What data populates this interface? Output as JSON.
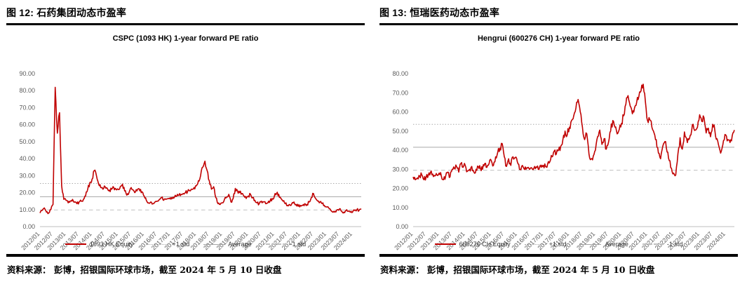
{
  "page": {
    "background": "#ffffff",
    "accent_red": "#C00000",
    "band_gray": "#A6A6A6"
  },
  "panels": [
    {
      "title": "图 12: 石药集团动态市盈率",
      "source": "资料来源： 彭博，招银国际环球市场，截至 2024 年 5 月 10 日收盘"
    },
    {
      "title": "图 13: 恒瑞医药动态市盈率",
      "source": "资料来源： 彭博，招银国际环球市场，截至 2024 年 5 月 10 日收盘"
    }
  ],
  "chart_data": [
    {
      "type": "line",
      "title": "CSPC (1093 HK) 1-year forward PE ratio",
      "xlabel": "",
      "ylabel": "",
      "ylim": [
        0,
        90
      ],
      "ytick_step": 10,
      "grid": false,
      "legend_position": "bottom",
      "x_unit": "month",
      "x_range": [
        "2012/01",
        "2024/05"
      ],
      "x_tick_labels": [
        "2012/01",
        "2012/07",
        "2013/01",
        "2013/07",
        "2014/01",
        "2014/07",
        "2015/01",
        "2015/07",
        "2016/01",
        "2016/07",
        "2017/01",
        "2017/07",
        "2018/01",
        "2018/07",
        "2019/01",
        "2019/07",
        "2020/01",
        "2020/07",
        "2021/01",
        "2021/07",
        "2022/01",
        "2022/07",
        "2023/01",
        "2023/07",
        "2024/01"
      ],
      "series": [
        {
          "name": "1093 HK Equity",
          "color": "#C00000",
          "values": [
            8.0,
            9.5,
            11.0,
            8.5,
            8.0,
            10.0,
            13.0,
            82.0,
            55.0,
            67.0,
            24.0,
            16.0,
            15.5,
            14.0,
            15.0,
            16.0,
            14.5,
            13.5,
            14.5,
            15.0,
            16.0,
            18.0,
            22.0,
            26.0,
            28.0,
            33.0,
            30.0,
            25.0,
            23.0,
            22.0,
            23.5,
            22.5,
            21.5,
            22.0,
            23.0,
            22.0,
            22.0,
            23.5,
            25.0,
            21.0,
            18.5,
            20.0,
            23.0,
            21.5,
            20.5,
            22.0,
            21.0,
            20.5,
            18.0,
            15.5,
            14.0,
            14.5,
            13.5,
            14.5,
            15.0,
            16.0,
            17.0,
            15.5,
            16.0,
            16.5,
            17.0,
            16.5,
            17.5,
            18.0,
            18.5,
            19.0,
            19.5,
            20.0,
            20.5,
            21.0,
            22.0,
            23.0,
            24.0,
            27.0,
            30.0,
            35.0,
            38.5,
            33.0,
            27.0,
            22.0,
            23.5,
            17.0,
            13.5,
            13.0,
            14.0,
            16.0,
            17.5,
            19.0,
            14.5,
            16.5,
            22.5,
            21.0,
            20.0,
            19.5,
            18.0,
            16.5,
            18.0,
            19.0,
            17.0,
            15.5,
            14.0,
            13.5,
            15.0,
            14.5,
            13.5,
            14.0,
            15.0,
            16.5,
            18.0,
            19.5,
            19.0,
            16.5,
            15.0,
            13.5,
            12.5,
            13.0,
            13.5,
            14.5,
            13.0,
            12.0,
            12.5,
            12.5,
            13.5,
            13.0,
            14.5,
            17.0,
            19.5,
            16.5,
            15.0,
            14.5,
            13.5,
            12.5,
            11.5,
            11.0,
            9.5,
            8.5,
            9.0,
            10.0,
            10.5,
            9.0,
            8.5,
            9.5,
            9.0,
            8.5,
            8.5,
            9.5,
            10.0,
            9.5,
            10.5
          ]
        }
      ],
      "reference_lines": [
        {
          "name": "+1 std",
          "value": 25.4,
          "style": "dotted",
          "color": "#A6A6A6"
        },
        {
          "name": "Average",
          "value": 17.6,
          "style": "solid",
          "color": "#A6A6A6"
        },
        {
          "name": "-1 std",
          "value": 9.8,
          "style": "dashed",
          "color": "#BFBFBF"
        }
      ],
      "legend_items": [
        {
          "label": "1093 HK Equity",
          "swatch": "solid-red"
        },
        {
          "label": "+1 std",
          "swatch": "dotted-gray"
        },
        {
          "label": "Average",
          "swatch": "solid-gray"
        },
        {
          "label": "-1 std",
          "swatch": "dashed-gray"
        }
      ]
    },
    {
      "type": "line",
      "title": "Hengrui (600276 CH) 1-year forward PE ratio",
      "xlabel": "",
      "ylabel": "",
      "ylim": [
        0,
        80
      ],
      "ytick_step": 10,
      "grid": false,
      "legend_position": "bottom",
      "x_unit": "month",
      "x_range": [
        "2012/01",
        "2024/05"
      ],
      "x_tick_labels": [
        "2012/01",
        "2012/07",
        "2013/01",
        "2013/07",
        "2014/01",
        "2014/07",
        "2015/01",
        "2015/07",
        "2016/01",
        "2016/07",
        "2017/01",
        "2017/07",
        "2018/01",
        "2018/07",
        "2019/01",
        "2019/07",
        "2020/01",
        "2020/07",
        "2021/01",
        "2021/07",
        "2022/01",
        "2022/07",
        "2023/01",
        "2023/07",
        "2024/01"
      ],
      "series": [
        {
          "name": "600276 CH Equity",
          "color": "#C00000",
          "values": [
            26.0,
            24.5,
            25.5,
            26.5,
            27.0,
            24.5,
            26.0,
            27.0,
            28.5,
            27.5,
            26.5,
            27.0,
            28.0,
            26.5,
            24.5,
            26.5,
            28.5,
            26.0,
            30.0,
            30.5,
            31.5,
            28.5,
            33.0,
            31.0,
            32.0,
            29.0,
            30.0,
            31.5,
            28.5,
            30.0,
            31.5,
            30.5,
            30.0,
            33.0,
            31.0,
            33.0,
            34.5,
            32.0,
            36.5,
            39.0,
            41.0,
            43.5,
            36.5,
            31.5,
            35.5,
            32.0,
            36.5,
            36.0,
            34.0,
            30.0,
            31.5,
            30.5,
            30.0,
            31.0,
            30.5,
            30.0,
            31.5,
            31.0,
            30.0,
            31.0,
            32.0,
            31.5,
            33.0,
            34.0,
            36.5,
            39.5,
            38.0,
            40.0,
            42.0,
            45.5,
            50.0,
            48.0,
            52.0,
            55.5,
            58.0,
            62.0,
            66.5,
            60.0,
            52.0,
            45.5,
            48.5,
            38.0,
            35.5,
            37.0,
            40.0,
            47.0,
            50.5,
            43.0,
            46.0,
            40.5,
            44.0,
            50.0,
            55.5,
            52.0,
            48.5,
            51.0,
            54.0,
            58.0,
            64.0,
            68.5,
            63.0,
            59.0,
            62.0,
            65.0,
            68.0,
            71.0,
            74.5,
            65.5,
            55.5,
            56.0,
            52.0,
            49.0,
            45.5,
            38.5,
            35.5,
            42.0,
            44.5,
            39.0,
            34.5,
            30.5,
            28.0,
            27.0,
            38.0,
            46.5,
            40.5,
            49.5,
            46.0,
            45.5,
            48.0,
            53.5,
            50.5,
            52.0,
            58.5,
            55.0,
            57.0,
            49.0,
            51.5,
            47.0,
            53.5,
            50.5,
            46.0,
            41.5,
            39.5,
            45.0,
            48.0,
            45.5,
            44.0,
            47.5,
            50.5
          ]
        }
      ],
      "reference_lines": [
        {
          "name": "+1 std",
          "value": 53.5,
          "style": "dotted",
          "color": "#A6A6A6"
        },
        {
          "name": "Average",
          "value": 41.5,
          "style": "solid",
          "color": "#A6A6A6"
        },
        {
          "name": "-1 std",
          "value": 29.5,
          "style": "dashed",
          "color": "#BFBFBF"
        }
      ],
      "legend_items": [
        {
          "label": "600276 CH Equity",
          "swatch": "solid-red"
        },
        {
          "label": "+1 std",
          "swatch": "dotted-gray"
        },
        {
          "label": "Average",
          "swatch": "solid-gray"
        },
        {
          "label": "-1 std",
          "swatch": "dashed-gray"
        }
      ]
    }
  ]
}
